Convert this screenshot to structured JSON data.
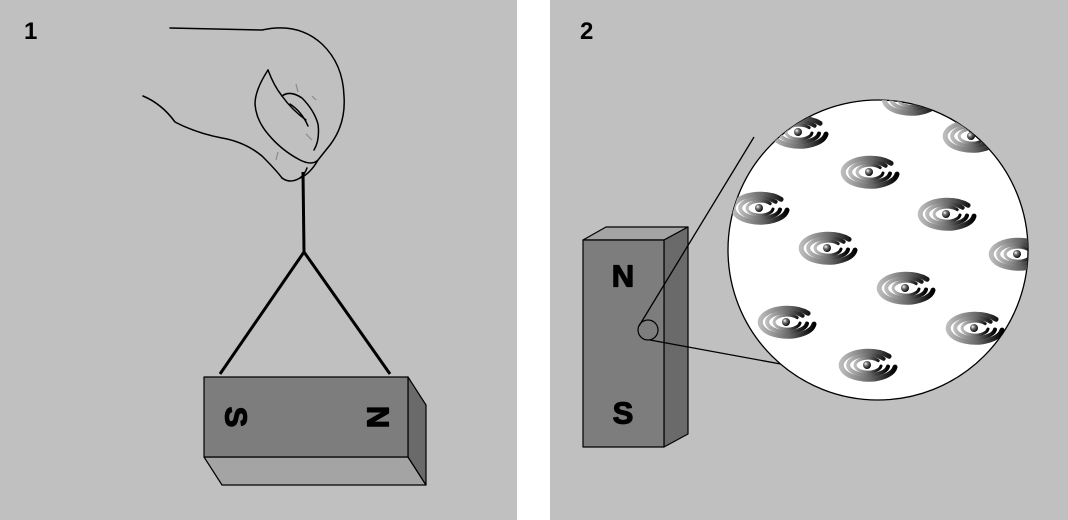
{
  "panels": [
    {
      "number": "1",
      "magnet": {
        "pole_left": "S",
        "pole_right": "N"
      }
    },
    {
      "number": "2",
      "magnet": {
        "pole_top": "N",
        "pole_bottom": "S"
      }
    }
  ],
  "colors": {
    "background": "#c0c0c0",
    "magnet_front": "#7d7d7d",
    "magnet_top": "#a4a4a4",
    "magnet_side": "#6a6a6a",
    "magnified_view": "#ffffff"
  },
  "icons": [
    "hand-icon",
    "string-icon",
    "bar-magnet-icon",
    "magnifier-circle-icon",
    "spinning-electron-icon"
  ]
}
